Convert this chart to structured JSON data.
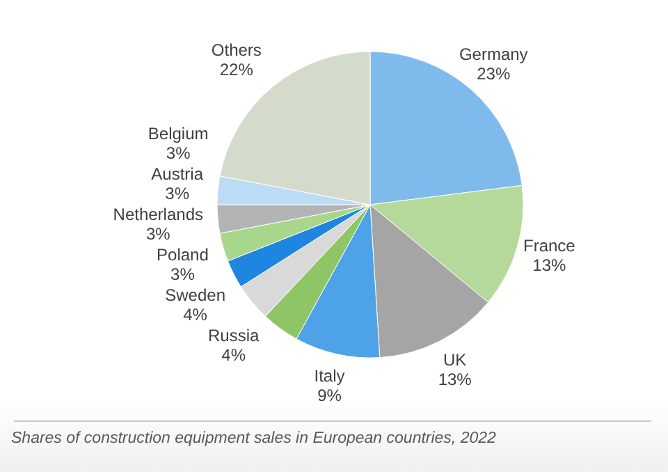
{
  "chart_data": {
    "type": "pie",
    "categories": [
      "Germany",
      "France",
      "UK",
      "Italy",
      "Russia",
      "Sweden",
      "Poland",
      "Netherlands",
      "Austria",
      "Belgium",
      "Others"
    ],
    "values": [
      23,
      13,
      13,
      9,
      4,
      4,
      3,
      3,
      3,
      3,
      22
    ],
    "value_labels": [
      "23%",
      "13%",
      "13%",
      "9%",
      "4%",
      "4%",
      "3%",
      "3%",
      "3%",
      "3%",
      "22%"
    ],
    "colors": [
      "#7fbaec",
      "#b5d99a",
      "#a5a5a5",
      "#4ea2e8",
      "#8ec566",
      "#d9d9d9",
      "#1e86e0",
      "#a8d68a",
      "#b4b4b4",
      "#bcdcf5",
      "#d5dbcb"
    ],
    "annotations": [
      "Shares of construction equipment sales in European countries, 2022"
    ],
    "legend": false
  }
}
